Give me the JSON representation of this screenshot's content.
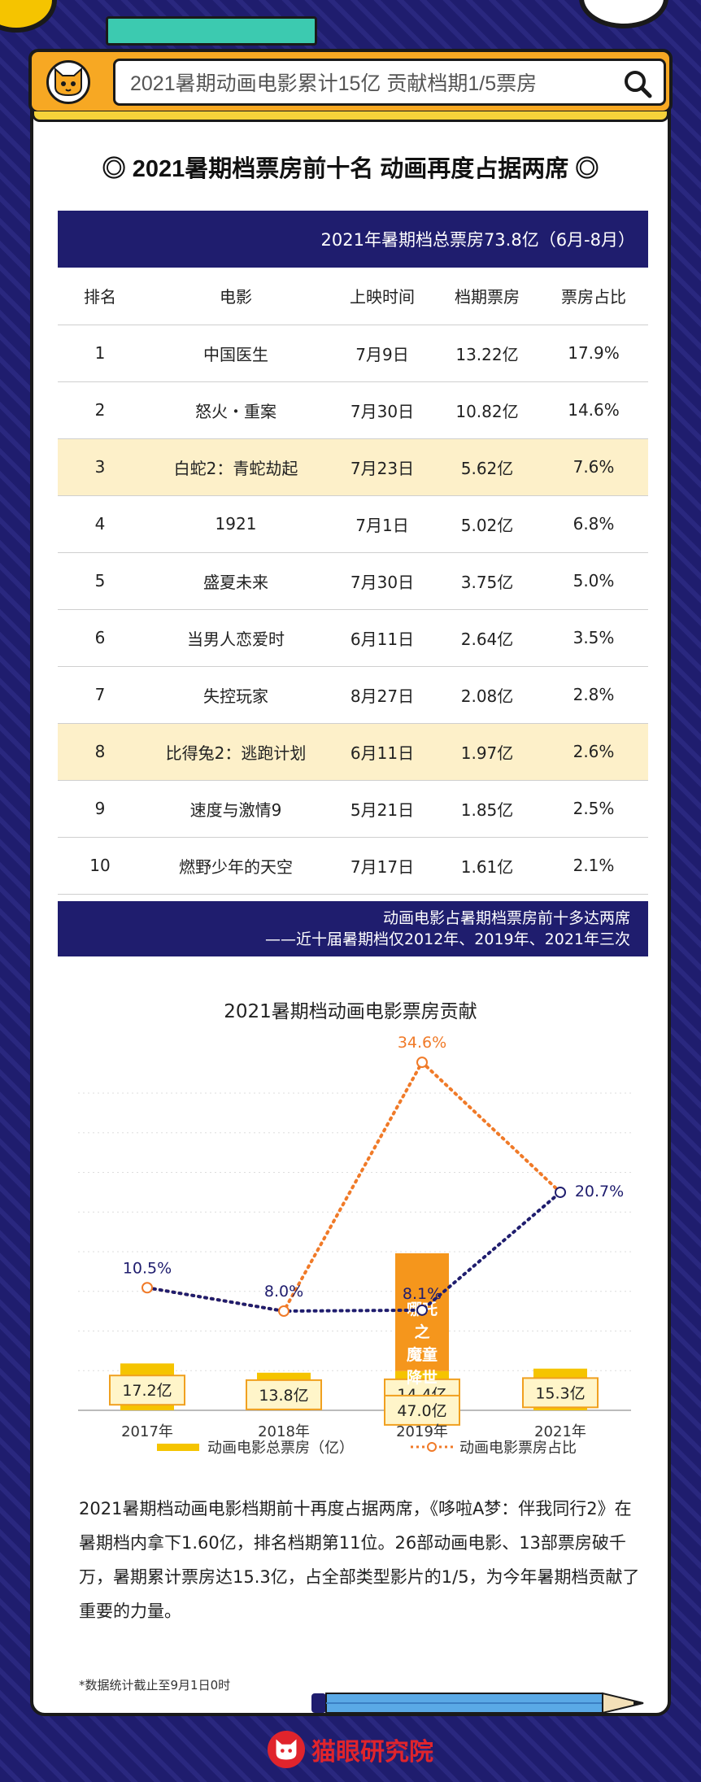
{
  "header": {
    "search_text": "2021暑期动画电影累计15亿 贡献档期1/5票房"
  },
  "section_title": "◎ 2021暑期档票房前十名 动画再度占据两席 ◎",
  "table": {
    "banner": "2021年暑期档总票房73.8亿（6月-8月）",
    "columns": [
      "排名",
      "电影",
      "上映时间",
      "档期票房",
      "票房占比"
    ],
    "rows": [
      {
        "rank": "1",
        "film": "中国医生",
        "date": "7月9日",
        "box": "13.22亿",
        "share": "17.9%",
        "highlight": false
      },
      {
        "rank": "2",
        "film": "怒火・重案",
        "date": "7月30日",
        "box": "10.82亿",
        "share": "14.6%",
        "highlight": false
      },
      {
        "rank": "3",
        "film": "白蛇2：青蛇劫起",
        "date": "7月23日",
        "box": "5.62亿",
        "share": "7.6%",
        "highlight": true
      },
      {
        "rank": "4",
        "film": "1921",
        "date": "7月1日",
        "box": "5.02亿",
        "share": "6.8%",
        "highlight": false
      },
      {
        "rank": "5",
        "film": "盛夏未来",
        "date": "7月30日",
        "box": "3.75亿",
        "share": "5.0%",
        "highlight": false
      },
      {
        "rank": "6",
        "film": "当男人恋爱时",
        "date": "6月11日",
        "box": "2.64亿",
        "share": "3.5%",
        "highlight": false
      },
      {
        "rank": "7",
        "film": "失控玩家",
        "date": "8月27日",
        "box": "2.08亿",
        "share": "2.8%",
        "highlight": false
      },
      {
        "rank": "8",
        "film": "比得兔2：逃跑计划",
        "date": "6月11日",
        "box": "1.97亿",
        "share": "2.6%",
        "highlight": true
      },
      {
        "rank": "9",
        "film": "速度与激情9",
        "date": "5月21日",
        "box": "1.85亿",
        "share": "2.5%",
        "highlight": false
      },
      {
        "rank": "10",
        "film": "燃野少年的天空",
        "date": "7月17日",
        "box": "1.61亿",
        "share": "2.1%",
        "highlight": false
      }
    ],
    "foot_line1": "动画电影占暑期档票房前十多达两席",
    "foot_line2": "——近十届暑期档仅2012年、2019年、2021年三次"
  },
  "chart_data": {
    "type": "bar",
    "title": "2021暑期档动画电影票房贡献",
    "categories": [
      "2017年",
      "2018年",
      "2019年",
      "2021年"
    ],
    "series": [
      {
        "name": "动画电影总票房（亿）",
        "values": [
          17.2,
          13.8,
          14.4,
          15.3
        ],
        "value_labels": [
          "17.2亿",
          "13.8亿",
          "14.4亿",
          "15.3亿"
        ],
        "color": "#f5c400"
      },
      {
        "name": "动画电影票房占比",
        "values": [
          10.5,
          8.0,
          34.6,
          20.7
        ],
        "value_labels": [
          "10.5%",
          "8.0%",
          "34.6%",
          "20.7%"
        ],
        "color": "#f07a28"
      }
    ],
    "highlight_segment": {
      "category": "2019年",
      "film": "哪吒之魔童降世",
      "value": 47.0,
      "value_label": "47.0亿",
      "color": "#f5961c"
    },
    "excluding_highlight_share": {
      "category": "2019年",
      "value": 8.1,
      "value_label": "8.1%",
      "connects": [
        "2018年",
        "2021年"
      ],
      "color": "#1f1d6e"
    },
    "grid": true,
    "legend_position": "bottom"
  },
  "description": "2021暑期档动画电影档期前十再度占据两席，《哆啦A梦：伴我同行2》在暑期档内拿下1.60亿，排名档期第11位。26部动画电影、13部票房破千万，暑期累计票房达15.3亿，占全部类型影片的1/5，为今年暑期档贡献了重要的力量。",
  "note": "*数据统计截止至9月1日0时",
  "brand": "猫眼研究院"
}
